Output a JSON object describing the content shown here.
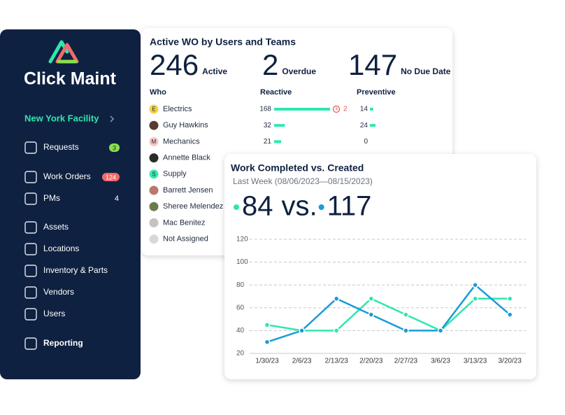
{
  "sidebar": {
    "brand": "Click Maint",
    "facility": "New York Facility",
    "nav": [
      {
        "label": "Requests",
        "badge": 3
      },
      {
        "label": "Work Orders",
        "badge": 124
      },
      {
        "label": "PMs",
        "badge": 4
      },
      {
        "label": "Assets"
      },
      {
        "label": "Locations"
      },
      {
        "label": "Inventory & Parts"
      },
      {
        "label": "Vendors"
      },
      {
        "label": "Users"
      },
      {
        "label": "Reporting"
      }
    ]
  },
  "wo_card": {
    "title": "Active WO by Users and Teams",
    "stats": [
      {
        "value": 246,
        "label": "Active"
      },
      {
        "value": 2,
        "label": "Overdue"
      },
      {
        "value": 147,
        "label": "No Due Date"
      }
    ],
    "columns": [
      "Who",
      "Reactive",
      "Preventive"
    ],
    "rows": [
      {
        "initial": "E",
        "name": "Electrics",
        "reactive": 168,
        "overdue": 2,
        "preventive": 14
      },
      {
        "name": "Guy Hawkins",
        "reactive": 32,
        "preventive": 24
      },
      {
        "initial": "M",
        "name": "Mechanics",
        "reactive": 21,
        "preventive": 0
      },
      {
        "name": "Annette Black"
      },
      {
        "initial": "S",
        "name": "Supply"
      },
      {
        "name": "Barrett Jensen"
      },
      {
        "name": "Sheree Melendez"
      },
      {
        "name": "Mac Benitez"
      },
      {
        "name": "Not Assigned"
      }
    ]
  },
  "chart_card": {
    "title": "Work Completed vs. Created",
    "subtitle": "Last Week (08/06/2023—08/15/2023)",
    "completed": 84,
    "separator": "vs.",
    "created": 117
  },
  "chart_data": {
    "type": "line",
    "categories": [
      "1/30/23",
      "2/6/23",
      "2/13/23",
      "2/20/23",
      "2/27/23",
      "3/6/23",
      "3/13/23",
      "3/20/23"
    ],
    "series": [
      {
        "color": "#2ee6b0",
        "values": [
          45,
          40,
          40,
          68,
          54,
          40,
          68,
          68
        ]
      },
      {
        "color": "#1a9bd7",
        "values": [
          30,
          40,
          68,
          54,
          40,
          40,
          80,
          54
        ]
      }
    ],
    "ylim": [
      20,
      120
    ],
    "yticks": [
      20,
      40,
      60,
      80,
      100,
      120
    ],
    "grid": true
  }
}
